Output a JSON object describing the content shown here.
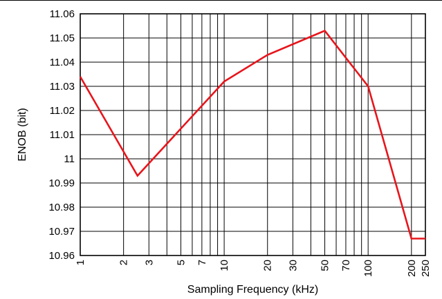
{
  "chart_data": {
    "type": "line",
    "xlabel": "Sampling Frequency (kHz)",
    "ylabel": "ENOB (bit)",
    "x_scale": "log",
    "xlim": [
      1,
      250
    ],
    "ylim": [
      10.96,
      11.06
    ],
    "grid": true,
    "x_tick_values": [
      1,
      2,
      3,
      5,
      7,
      10,
      20,
      30,
      50,
      70,
      100,
      200,
      250
    ],
    "x_tick_labels": [
      "1",
      "2",
      "3",
      "5",
      "7",
      "10",
      "20",
      "30",
      "50",
      "70",
      "100",
      "200",
      "250"
    ],
    "y_tick_values": [
      10.96,
      10.97,
      10.98,
      10.99,
      11,
      11.01,
      11.02,
      11.03,
      11.04,
      11.05,
      11.06
    ],
    "y_tick_labels": [
      "10.96",
      "10.97",
      "10.98",
      "10.99",
      "11",
      "11.01",
      "11.02",
      "11.03",
      "11.04",
      "11.05",
      "11.06"
    ],
    "series": [
      {
        "color": "#e8141b",
        "x": [
          1,
          2.5,
          10,
          20,
          50,
          100,
          200,
          250
        ],
        "y": [
          11.034,
          10.993,
          11.032,
          11.043,
          11.053,
          11.03,
          10.967,
          10.967
        ]
      }
    ]
  }
}
